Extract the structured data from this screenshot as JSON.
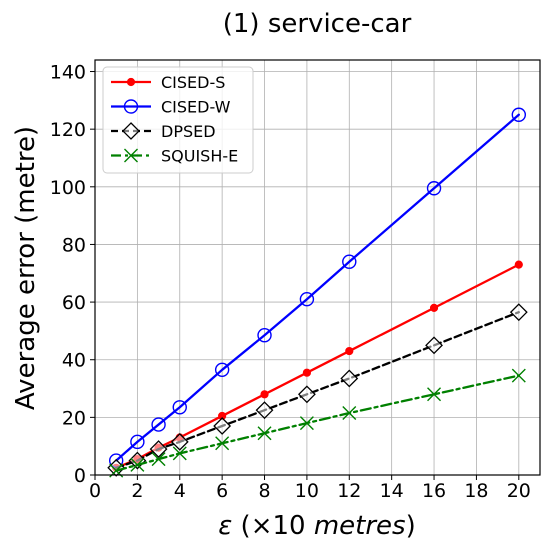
{
  "chart_data": {
    "type": "line",
    "title": "(1) service-car",
    "xlabel": {
      "symbol": "ε",
      "open": " (×10 ",
      "unit": "metres",
      "close": ")"
    },
    "ylabel": "Average error (metre)",
    "xlim": [
      0,
      21
    ],
    "ylim": [
      0,
      144
    ],
    "xticks": [
      0,
      2,
      4,
      6,
      8,
      10,
      12,
      14,
      16,
      18,
      20
    ],
    "yticks": [
      0,
      20,
      40,
      60,
      80,
      100,
      120,
      140
    ],
    "grid": true,
    "legend_position": "top-left",
    "x": [
      1,
      2,
      3,
      4,
      6,
      8,
      10,
      12,
      16,
      20
    ],
    "series": [
      {
        "name": "CISED-S",
        "color": "#ff0000",
        "marker": "dot",
        "dash": "solid",
        "values": [
          2.5,
          5.5,
          9.5,
          13,
          20.5,
          28,
          35.5,
          43,
          58,
          73
        ]
      },
      {
        "name": "CISED-W",
        "color": "#0000ff",
        "marker": "open-circle",
        "dash": "solid",
        "values": [
          5,
          11.5,
          17.5,
          23.5,
          36.5,
          48.5,
          61,
          74,
          99.5,
          125
        ]
      },
      {
        "name": "DPSED",
        "color": "#000000",
        "marker": "open-diamond",
        "dash": "dashed",
        "values": [
          2.5,
          5,
          9,
          11.5,
          17,
          22.5,
          28,
          33.5,
          45,
          56.5
        ]
      },
      {
        "name": "SQUISH-E",
        "color": "#008000",
        "marker": "x",
        "dash": "dashdot",
        "values": [
          1.5,
          3.5,
          5.5,
          7.5,
          11,
          14.5,
          18,
          21.5,
          28,
          34.5
        ]
      }
    ]
  }
}
